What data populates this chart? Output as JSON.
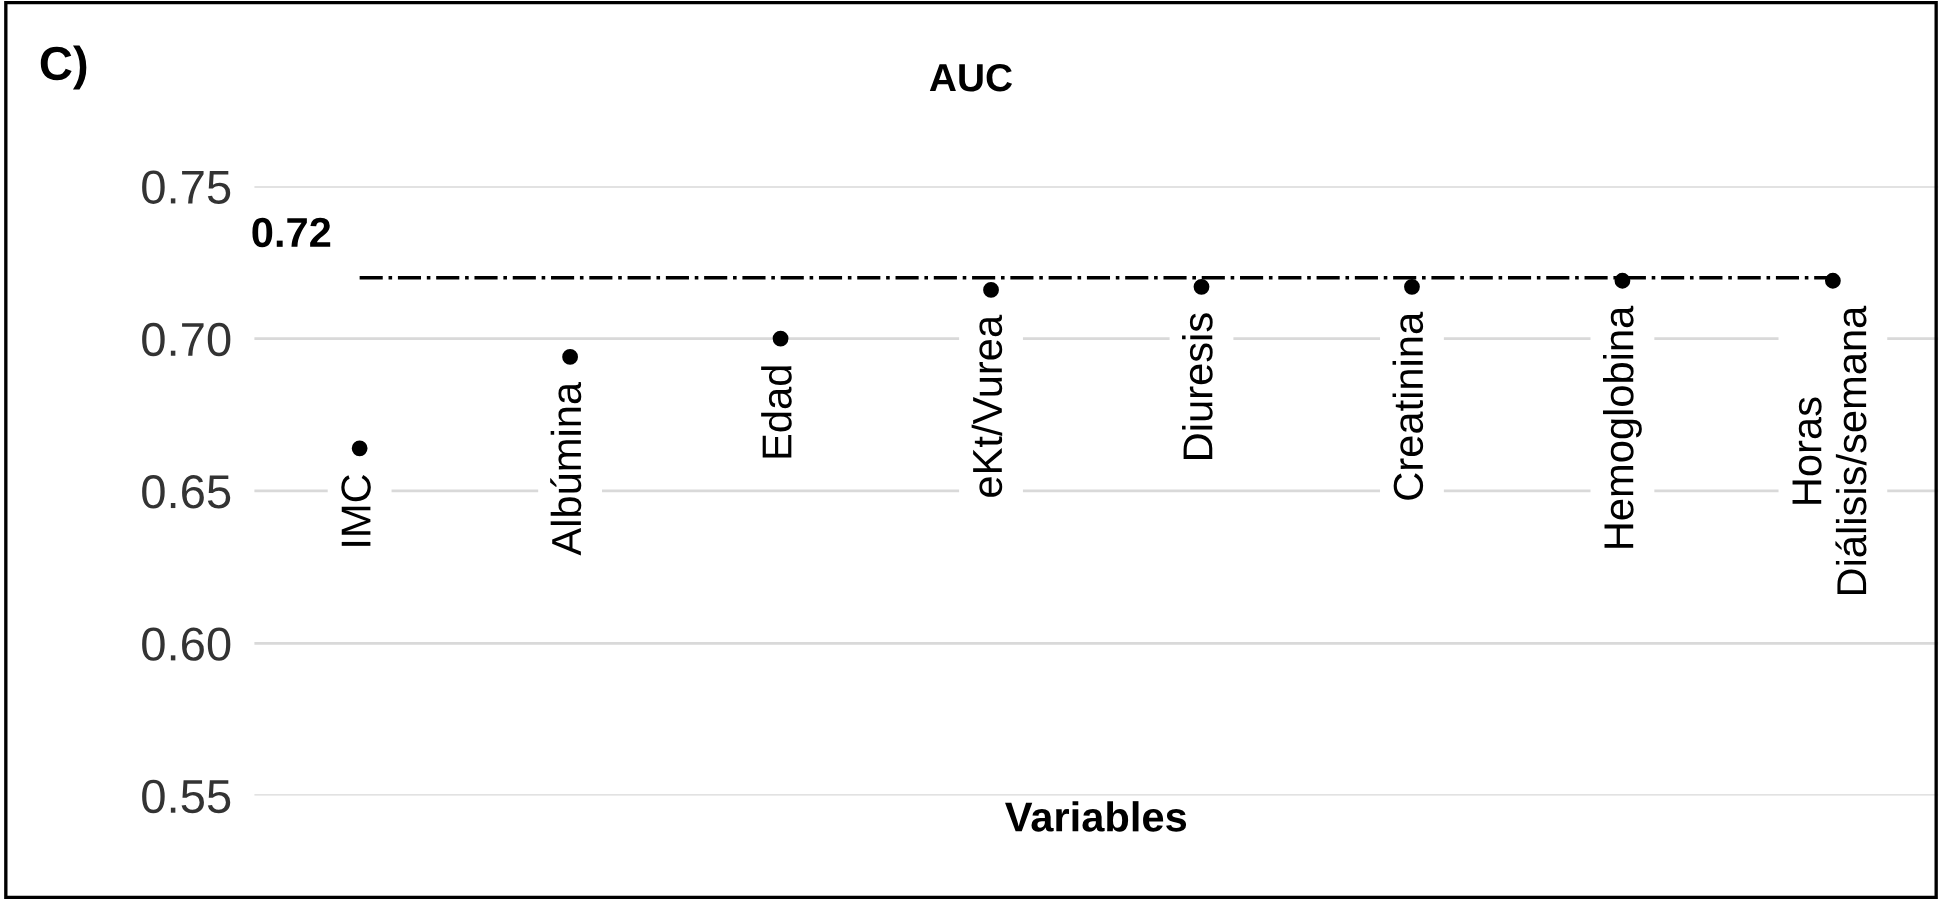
{
  "chart_data": {
    "type": "scatter",
    "title": "AUC",
    "xlabel": "Variables",
    "annotations": [
      "C)"
    ],
    "categories": [
      "IMC",
      "Albúmina",
      "Edad",
      "eKt/Vurea",
      "Diuresis",
      "Creatinina",
      "Hemoglobina",
      "Horas\nDiálisis/semana"
    ],
    "values": [
      0.664,
      0.694,
      0.7,
      0.716,
      0.717,
      0.717,
      0.719,
      0.719
    ],
    "color": "#000000",
    "marker": "circle",
    "ylim": [
      0.55,
      0.75
    ],
    "yticks": [
      {
        "value": 0.55,
        "label": "0.55"
      },
      {
        "value": 0.6,
        "label": "0.60"
      },
      {
        "value": 0.65,
        "label": "0.65"
      },
      {
        "value": 0.7,
        "label": "0.70"
      },
      {
        "value": 0.75,
        "label": "0.75"
      }
    ],
    "ref_lines": [
      {
        "axis": "y",
        "value": 0.72,
        "label": "0.72",
        "color": "#000000",
        "line_style": "dashdot"
      }
    ],
    "grid": "y",
    "tick_labels": "y"
  }
}
